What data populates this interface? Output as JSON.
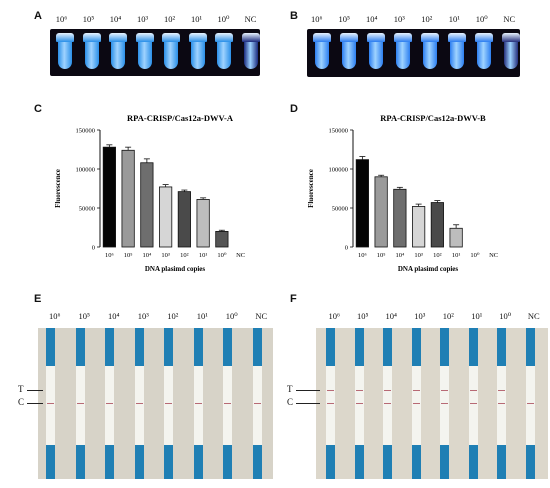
{
  "panels": {
    "A": {
      "letter": "A"
    },
    "B": {
      "letter": "B"
    },
    "C": {
      "letter": "C"
    },
    "D": {
      "letter": "D"
    },
    "E": {
      "letter": "E"
    },
    "F": {
      "letter": "F"
    }
  },
  "concentrations": [
    "10⁶",
    "10⁵",
    "10⁴",
    "10³",
    "10²",
    "10¹",
    "10⁰",
    "NC"
  ],
  "tube_colors": {
    "A": [
      "#2a8fe8",
      "#2a8fe8",
      "#2a8fe8",
      "#2a8fe8",
      "#2a8fe8",
      "#2a8fe8",
      "#2a8fe8",
      "#1b2b7e"
    ],
    "B": [
      "#2c7ef0",
      "#2c7ef0",
      "#2c7ef0",
      "#2c7ef0",
      "#2c7ef0",
      "#2c7ef0",
      "#2c7ef0",
      "#26307d"
    ]
  },
  "strips": {
    "E": {
      "t_line": [
        false,
        false,
        false,
        false,
        false,
        false,
        false,
        false
      ],
      "c_line": [
        true,
        true,
        true,
        true,
        true,
        true,
        true,
        true
      ]
    },
    "F": {
      "t_line": [
        true,
        true,
        true,
        true,
        true,
        true,
        true,
        false
      ],
      "c_line": [
        true,
        true,
        true,
        true,
        true,
        true,
        true,
        true
      ]
    }
  },
  "strip_labels": {
    "T": "T",
    "C": "C"
  },
  "chart_data": [
    {
      "type": "bar",
      "title": "RPA-CRISP/Cas12a-DWV-A",
      "xlabel": "DNA plasimd copies",
      "ylabel": "Fluorescence",
      "categories": [
        "10⁶",
        "10⁵",
        "10⁴",
        "10³",
        "10²",
        "10¹",
        "10⁰",
        "NC"
      ],
      "values": [
        128000,
        124000,
        108000,
        77000,
        71000,
        61000,
        20000,
        0
      ],
      "errors": [
        3000,
        4000,
        5000,
        3000,
        2000,
        2000,
        1500,
        0
      ],
      "colors": [
        "#050505",
        "#9a9a9a",
        "#6e6e6e",
        "#d6d6d6",
        "#4a4a4a",
        "#bdbdbd",
        "#555555",
        "#ffffff"
      ],
      "ylim": [
        0,
        150000
      ],
      "yticks": [
        "0",
        "50000",
        "100000",
        "150000"
      ]
    },
    {
      "type": "bar",
      "title": "RPA-CRISP/Cas12a-DWV-B",
      "xlabel": "DNA plasimd copies",
      "ylabel": "Fluorescence",
      "categories": [
        "10⁶",
        "10⁵",
        "10⁴",
        "10³",
        "10²",
        "10¹",
        "10⁰",
        "NC"
      ],
      "values": [
        112000,
        90000,
        74000,
        52000,
        57000,
        24000,
        0,
        0
      ],
      "errors": [
        4000,
        2000,
        2500,
        3000,
        2500,
        4500,
        0,
        0
      ],
      "colors": [
        "#050505",
        "#9a9a9a",
        "#6e6e6e",
        "#d6d6d6",
        "#4a4a4a",
        "#bdbdbd",
        "#555555",
        "#ffffff"
      ],
      "ylim": [
        0,
        150000
      ],
      "yticks": [
        "0",
        "50000",
        "100000",
        "150000"
      ]
    }
  ]
}
